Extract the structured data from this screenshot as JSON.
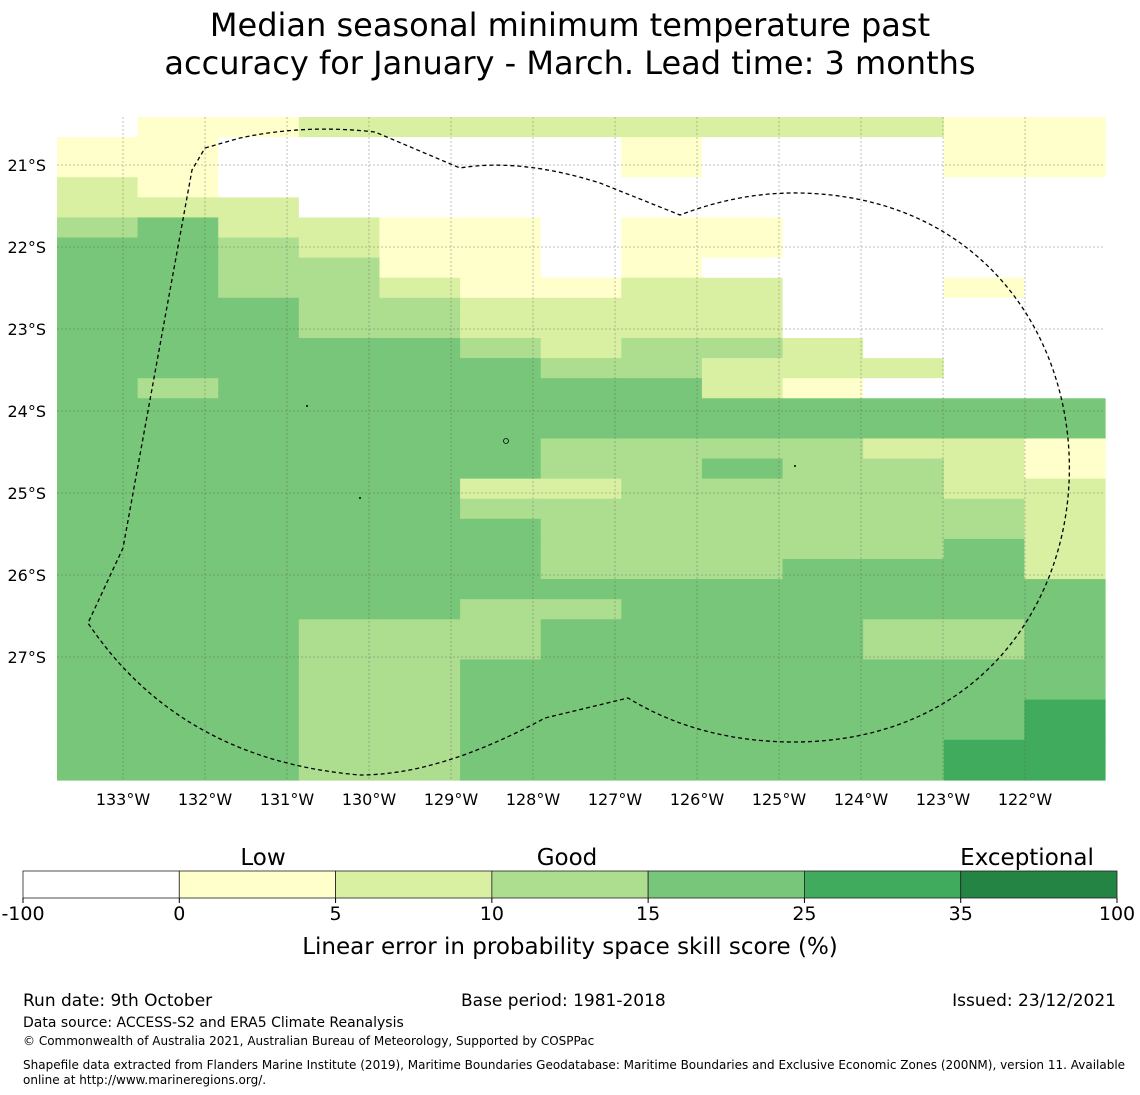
{
  "title": {
    "line1": "Median seasonal minimum temperature past",
    "line2": "accuracy for January - March. Lead time: 3 months"
  },
  "map": {
    "lat_labels": [
      "21°S",
      "22°S",
      "23°S",
      "24°S",
      "25°S",
      "26°S",
      "27°S"
    ],
    "lon_labels": [
      "133°W",
      "132°W",
      "131°W",
      "130°W",
      "129°W",
      "128°W",
      "127°W",
      "126°W",
      "125°W",
      "124°W",
      "123°W",
      "122°W"
    ],
    "bin_colors": [
      "#ffffff",
      "#ffffcc",
      "#d9f0a3",
      "#addd8e",
      "#78c679",
      "#41ab5d",
      "#238443"
    ],
    "grid_bins": [
      "0112222222211",
      "1100000100011",
      "1100000100011",
      "2100000000000",
      "2220000000000",
      "3422110110000",
      "4432110110000",
      "4433110100000",
      "4433211220010",
      "4443322220000",
      "4443322220000",
      "4444432332000",
      "4444443322200",
      "4344444421000",
      "4444444444444",
      "4444444444444",
      "4444443333221",
      "4444443343321",
      "4444422333322",
      "4444433333332",
      "4444443333332",
      "4444443333342",
      "4444443334442",
      "4444444444444",
      "4444433444444",
      "4443334444334",
      "4443334444334",
      "4443344444444",
      "4443344444444",
      "4443344444445",
      "4443344444445",
      "4443344444455",
      "4443344444455"
    ]
  },
  "colorbar": {
    "categories": [
      "Low",
      "Good",
      "Exceptional"
    ],
    "ticks": [
      "-100",
      "0",
      "5",
      "10",
      "15",
      "25",
      "35",
      "100"
    ],
    "colors": [
      "#ffffff",
      "#ffffcc",
      "#d9f0a3",
      "#addd8e",
      "#78c679",
      "#41ab5d",
      "#238443"
    ],
    "label": "Linear error in probability space skill score (%)"
  },
  "footer": {
    "run_date": "Run date: 9th October",
    "base_period": "Base period: 1981-2018",
    "issued": "Issued: 23/12/2021",
    "data_source": "Data source: ACCESS-S2 and ERA5 Climate Reanalysis",
    "copyright": "© Commonwealth of Australia 2021, Australian Bureau of Meteorology, Supported by COSPPac",
    "shapefile_line1": "Shapefile data extracted from Flanders Marine Institute (2019), Maritime Boundaries Geodatabase: Maritime Boundaries and Exclusive Economic Zones (200NM), version 11. Available",
    "shapefile_line2": "online at http://www.marineregions.org/."
  }
}
